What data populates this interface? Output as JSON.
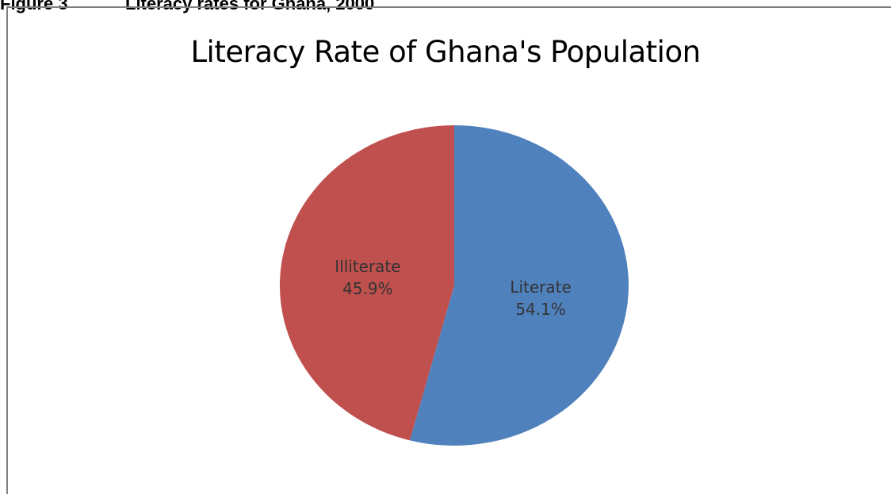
{
  "figure_caption": {
    "label": "Figure 3",
    "text": "Literacy rates for Ghana, 2000"
  },
  "colors": {
    "literate": "#4F81BD",
    "illiterate": "#C0504D"
  },
  "chart_data": {
    "type": "pie",
    "title": "Literacy Rate of Ghana's Population",
    "slices": [
      {
        "label": "Literate",
        "value": 54.1,
        "display": "54.1%"
      },
      {
        "label": "Illiterate",
        "value": 45.9,
        "display": "45.9%"
      }
    ],
    "start_angle_deg": 0,
    "direction": "clockwise",
    "legend": "none"
  }
}
